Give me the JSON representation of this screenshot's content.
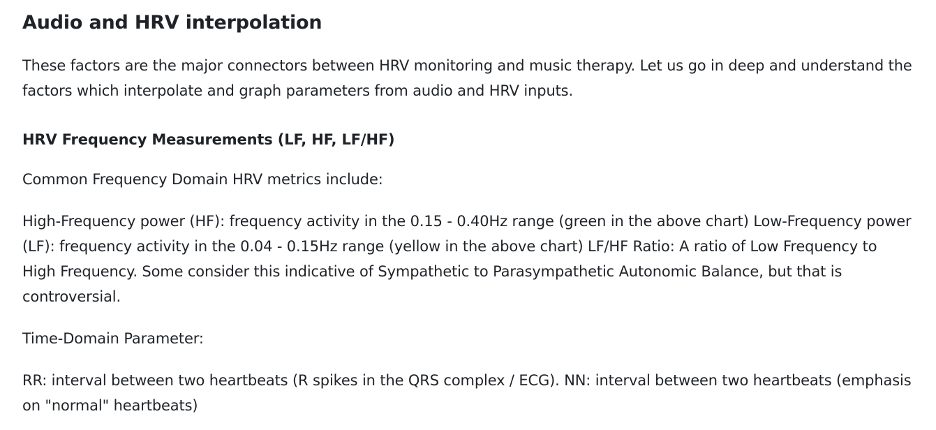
{
  "article": {
    "heading": "Audio and HRV interpolation",
    "intro": "These factors are the major connectors between HRV monitoring and music therapy. Let us go in deep and understand the factors which interpolate and graph parameters from audio and HRV inputs.",
    "subheading": "HRV Frequency Measurements (LF, HF, LF/HF)",
    "common_metrics": "Common Frequency Domain HRV metrics include:",
    "frequency_details": "High-Frequency power (HF): frequency activity in the 0.15 - 0.40Hz range (green in the above chart) Low-Frequency power (LF): frequency activity in the 0.04 - 0.15Hz range (yellow in the above chart) LF/HF Ratio: A ratio of Low Frequency to High Frequency. Some consider this indicative of Sympathetic to Parasympathetic Autonomic Balance, but that is controversial.",
    "time_domain_label": "Time-Domain Parameter:",
    "time_domain_details": "RR: interval between two heartbeats (R spikes in the QRS complex / ECG). NN: interval between two heartbeats (emphasis on \"normal\" heartbeats)"
  },
  "colors": {
    "text": "#1f2328",
    "background": "#ffffff"
  }
}
